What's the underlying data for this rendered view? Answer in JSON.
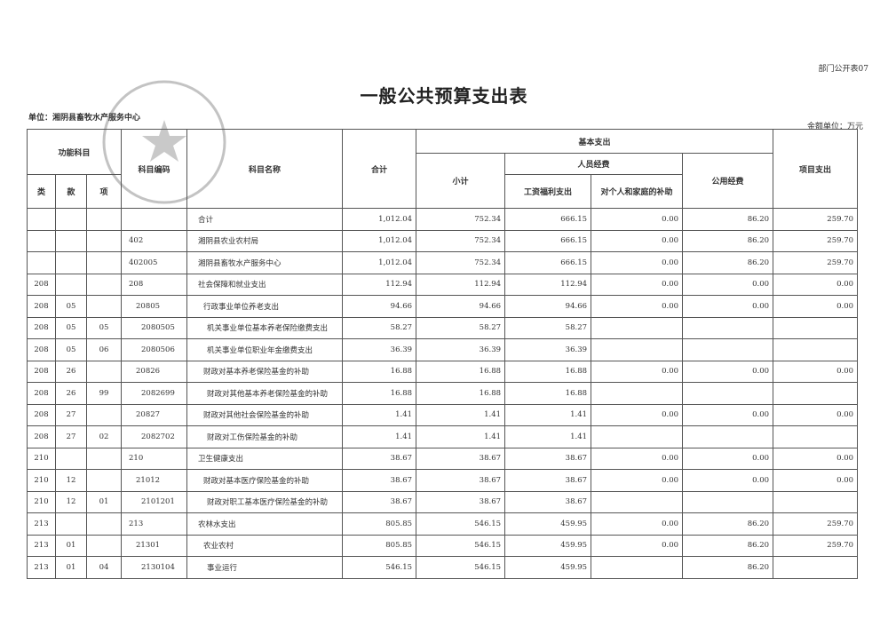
{
  "header": {
    "code": "部门公开表07",
    "title": "一般公共预算支出表",
    "unit": "单位：湘阴县畜牧水产服务中心",
    "currency": "金额单位：万元"
  },
  "table": {
    "header": {
      "function_subject": "功能科目",
      "class": "类",
      "section": "款",
      "item": "项",
      "code": "科目编码",
      "name": "科目名称",
      "total": "合计",
      "basic": "基本支出",
      "subtotal": "小计",
      "personnel": "人员经费",
      "salary": "工资福利支出",
      "subsidy": "对个人和家庭的补助",
      "public": "公用经费",
      "project": "项目支出"
    },
    "rows": [
      [
        null,
        null,
        null,
        null,
        "合计",
        "1,012.04",
        "752.34",
        "666.15",
        "0.00",
        "86.20",
        "259.70"
      ],
      [
        null,
        null,
        null,
        "402",
        "湘阴县农业农村局",
        "1,012.04",
        "752.34",
        "666.15",
        "0.00",
        "86.20",
        "259.70"
      ],
      [
        null,
        null,
        null,
        "402005",
        "湘阴县畜牧水产服务中心",
        "1,012.04",
        "752.34",
        "666.15",
        "0.00",
        "86.20",
        "259.70"
      ],
      [
        "208",
        null,
        null,
        "208",
        "社会保障和就业支出",
        "112.94",
        "112.94",
        "112.94",
        "0.00",
        "0.00",
        "0.00"
      ],
      [
        "208",
        "05",
        null,
        "20805",
        "行政事业单位养老支出",
        "94.66",
        "94.66",
        "94.66",
        "0.00",
        "0.00",
        "0.00"
      ],
      [
        "208",
        "05",
        "05",
        "2080505",
        "机关事业单位基本养老保险缴费支出",
        "58.27",
        "58.27",
        "58.27",
        null,
        null,
        null
      ],
      [
        "208",
        "05",
        "06",
        "2080506",
        "机关事业单位职业年金缴费支出",
        "36.39",
        "36.39",
        "36.39",
        null,
        null,
        null
      ],
      [
        "208",
        "26",
        null,
        "20826",
        "财政对基本养老保险基金的补助",
        "16.88",
        "16.88",
        "16.88",
        "0.00",
        "0.00",
        "0.00"
      ],
      [
        "208",
        "26",
        "99",
        "2082699",
        "财政对其他基本养老保险基金的补助",
        "16.88",
        "16.88",
        "16.88",
        null,
        null,
        null
      ],
      [
        "208",
        "27",
        null,
        "20827",
        "财政对其他社会保险基金的补助",
        "1.41",
        "1.41",
        "1.41",
        "0.00",
        "0.00",
        "0.00"
      ],
      [
        "208",
        "27",
        "02",
        "2082702",
        "财政对工伤保险基金的补助",
        "1.41",
        "1.41",
        "1.41",
        null,
        null,
        null
      ],
      [
        "210",
        null,
        null,
        "210",
        "卫生健康支出",
        "38.67",
        "38.67",
        "38.67",
        "0.00",
        "0.00",
        "0.00"
      ],
      [
        "210",
        "12",
        null,
        "21012",
        "财政对基本医疗保险基金的补助",
        "38.67",
        "38.67",
        "38.67",
        "0.00",
        "0.00",
        "0.00"
      ],
      [
        "210",
        "12",
        "01",
        "2101201",
        "财政对职工基本医疗保险基金的补助",
        "38.67",
        "38.67",
        "38.67",
        null,
        null,
        null
      ],
      [
        "213",
        null,
        null,
        "213",
        "农林水支出",
        "805.85",
        "546.15",
        "459.95",
        "0.00",
        "86.20",
        "259.70"
      ],
      [
        "213",
        "01",
        null,
        "21301",
        "农业农村",
        "805.85",
        "546.15",
        "459.95",
        "0.00",
        "86.20",
        "259.70"
      ],
      [
        "213",
        "01",
        "04",
        "2130104",
        "事业运行",
        "546.15",
        "546.15",
        "459.95",
        null,
        "86.20",
        null
      ]
    ]
  }
}
